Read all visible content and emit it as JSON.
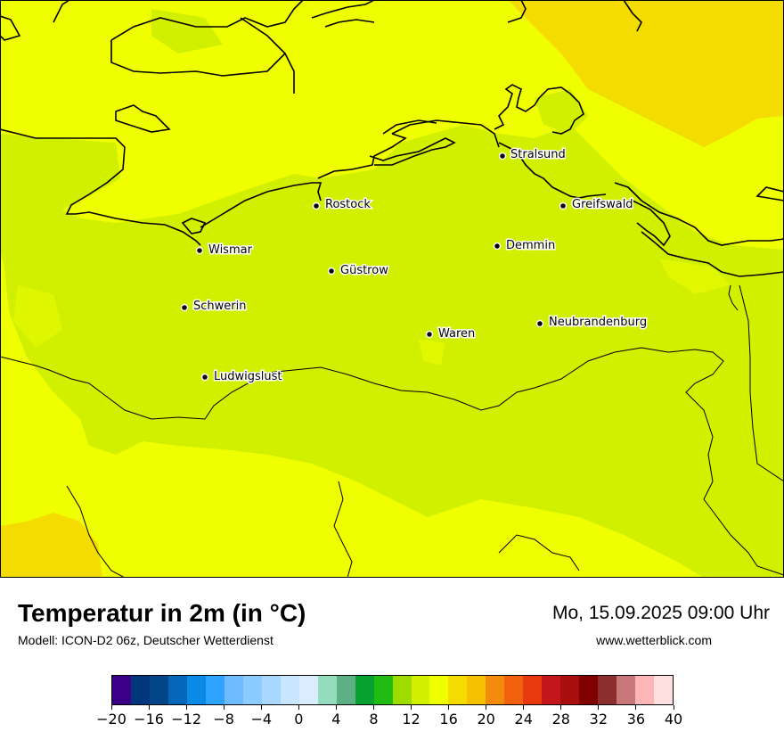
{
  "map": {
    "cities": [
      {
        "name": "Stralsund"
      },
      {
        "name": "Rostock"
      },
      {
        "name": "Greifswald"
      },
      {
        "name": "Wismar"
      },
      {
        "name": "Demmin"
      },
      {
        "name": "Güstrow"
      },
      {
        "name": "Schwerin"
      },
      {
        "name": "Neubrandenburg"
      },
      {
        "name": "Waren"
      },
      {
        "name": "Ludwigslust"
      }
    ],
    "colors": {
      "sea": "#f0ff00",
      "land_main": "#d0f000",
      "warm_zone": "#f4dc00",
      "coast_line": "#000000"
    }
  },
  "footer": {
    "title": "Temperatur in 2m (in °C)",
    "model": "Modell: ICON-D2 06z, Deutscher Wetterdienst",
    "datetime": "Mo, 15.09.2025 09:00 Uhr",
    "website": "www.wetterblick.com"
  },
  "legend": {
    "colors": [
      "#3b0086",
      "#02367a",
      "#024689",
      "#0466b9",
      "#0a8ae6",
      "#2fa3ff",
      "#6ebcff",
      "#8ccbff",
      "#a9d8ff",
      "#c9e6ff",
      "#d9edff",
      "#93dcbe",
      "#5eaf86",
      "#06a12e",
      "#22bb14",
      "#9edc00",
      "#d2ef00",
      "#f0ff00",
      "#f4dc00",
      "#f4c000",
      "#f48a0e",
      "#f2620e",
      "#e83a0e",
      "#c3161a",
      "#a90e0e",
      "#800000",
      "#8c2e2e",
      "#c87878",
      "#ffb6b6",
      "#ffe0e0"
    ],
    "tick_labels": [
      "−20",
      "−16",
      "−12",
      "−8",
      "−4",
      "0",
      "4",
      "8",
      "12",
      "16",
      "20",
      "24",
      "28",
      "32",
      "36",
      "40"
    ],
    "tick_values": [
      -20,
      -16,
      -12,
      -8,
      -4,
      0,
      4,
      8,
      12,
      16,
      20,
      24,
      28,
      32,
      36,
      40
    ],
    "range": [
      -20,
      40
    ]
  }
}
